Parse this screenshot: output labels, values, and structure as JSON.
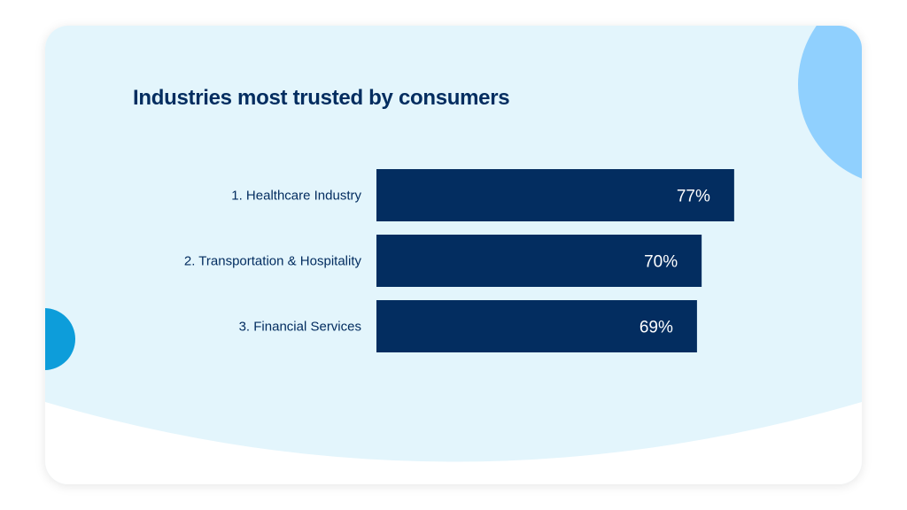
{
  "colors": {
    "card_background": "#e3f5fc",
    "bottom_wave": "#ffffff",
    "bar": "#032d60",
    "title": "#032d60",
    "circle_top_right": "#90d0fe",
    "circle_left": "#0d9dda"
  },
  "chart_data": {
    "type": "bar",
    "orientation": "horizontal",
    "title": "Industries most trusted by consumers",
    "categories": [
      "1. Healthcare Industry",
      "2. Transportation & Hospitality",
      "3. Financial Services"
    ],
    "values": [
      77,
      70,
      69
    ],
    "value_labels": [
      "77%",
      "70%",
      "69%"
    ],
    "unit": "%",
    "xlim": [
      0,
      100
    ],
    "grid": false,
    "legend": "none"
  }
}
